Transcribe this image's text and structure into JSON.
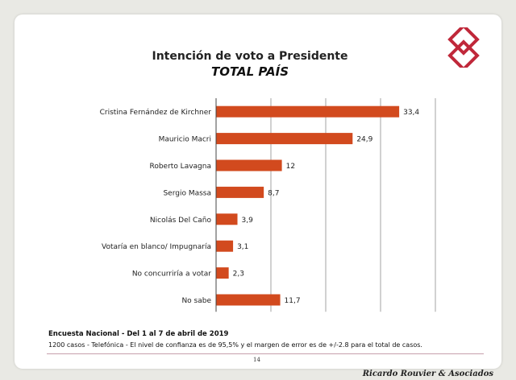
{
  "title": "Intención de voto a Presidente",
  "subtitle": "TOTAL PAÍS",
  "chart_data": {
    "type": "bar",
    "orientation": "horizontal",
    "categories": [
      "Cristina Fernández de Kirchner",
      "Mauricio Macri",
      "Roberto Lavagna",
      "Sergio Massa",
      "Nicolás Del Caño",
      "Votaría en blanco/ Impugnaría",
      "No concurriría a votar",
      "No sabe"
    ],
    "values": [
      33.4,
      24.9,
      12,
      8.7,
      3.9,
      3.1,
      2.3,
      11.7
    ],
    "value_labels": [
      "33,4",
      "24,9",
      "12",
      "8,7",
      "3,9",
      "3,1",
      "2,3",
      "11,7"
    ],
    "xlim": [
      0,
      40
    ],
    "grid": true,
    "bar_color": "#d24a1e"
  },
  "notes": {
    "line1": "Encuesta Nacional - Del 1 al 7 de abril de 2019",
    "line2": "1200 casos - Telefónica  - El nivel de confianza es de 95,5% y el margen de error es de +/-2.8 para el total de casos."
  },
  "page_number": "14",
  "footer": "Ricardo Rouvier & Asociados",
  "colors": {
    "logo": "#c0283a",
    "background": "#e9e9e4"
  }
}
